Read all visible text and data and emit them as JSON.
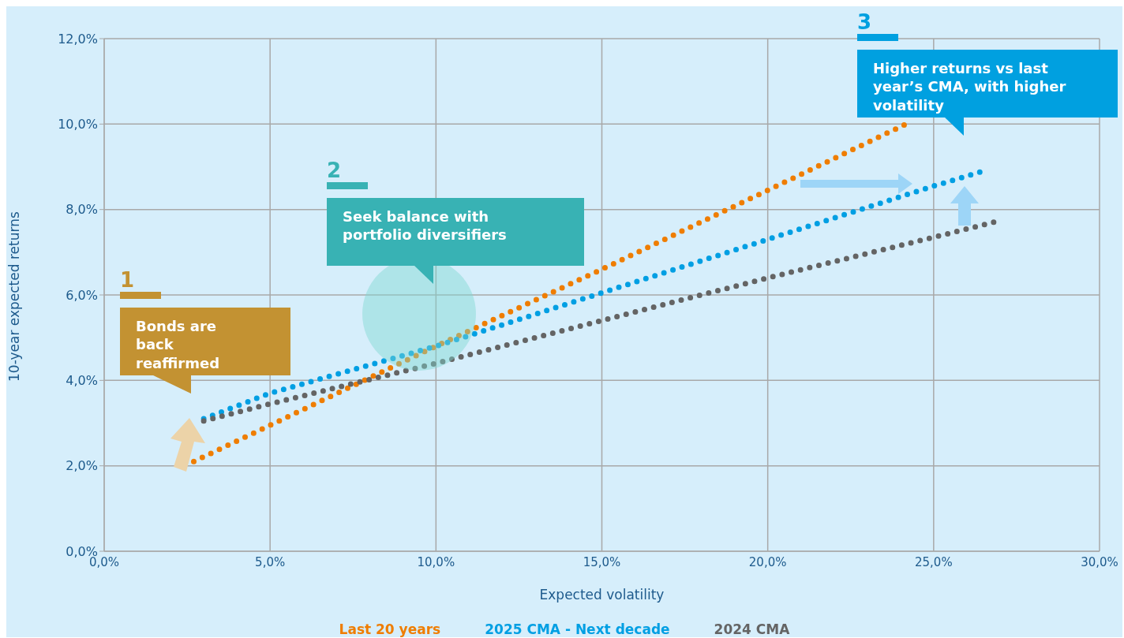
{
  "chart_data": {
    "type": "line",
    "xlabel": "Expected volatility",
    "ylabel": "10-year expected returns",
    "series": [
      {
        "name": "Last 20 years",
        "color": "#ef7d00",
        "x": [
          2.7,
          5,
          10,
          15,
          20,
          24.3
        ],
        "values": [
          2.1,
          2.95,
          4.8,
          6.6,
          8.45,
          10.05
        ]
      },
      {
        "name": "2025 CMA - Next decade",
        "color": "#009fe3",
        "x": [
          3,
          5,
          10,
          15,
          20,
          25,
          26.5
        ],
        "values": [
          3.1,
          3.7,
          4.8,
          6.05,
          7.3,
          8.55,
          8.9
        ]
      },
      {
        "name": "2024 CMA",
        "color": "#646464",
        "x": [
          3,
          5,
          10,
          15,
          20,
          25,
          26.9
        ],
        "values": [
          3.05,
          3.45,
          4.4,
          5.4,
          6.4,
          7.35,
          7.72
        ]
      }
    ],
    "xlim": [
      0,
      30
    ],
    "xticks": [
      {
        "value": 0,
        "label": "0,0%"
      },
      {
        "value": 5,
        "label": "5,0%"
      },
      {
        "value": 10,
        "label": "10,0%"
      },
      {
        "value": 15,
        "label": "15,0%"
      },
      {
        "value": 20,
        "label": "20,0%"
      },
      {
        "value": 25,
        "label": "25,0%"
      },
      {
        "value": 30,
        "label": "30,0%"
      }
    ],
    "ylim": [
      0,
      12
    ],
    "yticks": [
      {
        "value": 0,
        "label": "0,0%"
      },
      {
        "value": 2,
        "label": "2,0%"
      },
      {
        "value": 4,
        "label": "4,0%"
      },
      {
        "value": 6,
        "label": "6,0%"
      },
      {
        "value": 8,
        "label": "8,0%"
      },
      {
        "value": 10,
        "label": "10,0%"
      },
      {
        "value": 12,
        "label": "12,0%"
      }
    ],
    "grid": true,
    "legend": "bottom",
    "marker": "none",
    "line_style": "dotted",
    "annotations": [
      "1",
      "Bonds are back reaffirmed",
      "2",
      "Seek balance with portfolio diversifiers",
      "3",
      "Higher returns vs last year’s CMA, with higher volatility"
    ]
  }
}
